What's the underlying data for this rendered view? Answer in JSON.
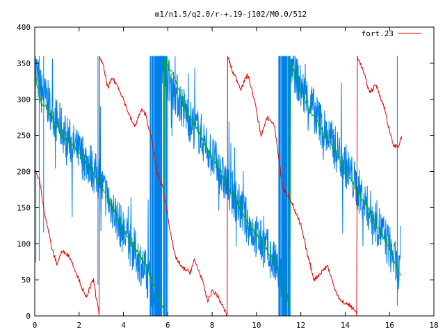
{
  "colors": {
    "red": "#e00000",
    "green": "#00b000",
    "blue": "#0080e8",
    "axis": "#000000"
  },
  "chart_data": {
    "type": "line",
    "title": "m1/n1.5/q2.0/r-+.19-j102/M0.0/512",
    "xlabel": "",
    "ylabel": "",
    "xlim": [
      0,
      18
    ],
    "ylim": [
      0,
      400
    ],
    "xticks": [
      0,
      2,
      4,
      6,
      8,
      10,
      12,
      14,
      16,
      18
    ],
    "yticks": [
      0,
      50,
      100,
      150,
      200,
      250,
      300,
      350,
      400
    ],
    "grid": false,
    "legend": {
      "position": "top-right",
      "entries": [
        "fort.23"
      ]
    },
    "series": [
      {
        "name": "fort.23",
        "color": "red",
        "wrap": 360,
        "points": [
          [
            0.0,
            200
          ],
          [
            0.2,
            190
          ],
          [
            0.3,
            170
          ],
          [
            0.35,
            158
          ],
          [
            0.6,
            120
          ],
          [
            0.8,
            90
          ],
          [
            1.0,
            72
          ],
          [
            1.2,
            88
          ],
          [
            1.4,
            88
          ],
          [
            1.6,
            80
          ],
          [
            2.0,
            50
          ],
          [
            2.3,
            25
          ],
          [
            2.5,
            40
          ],
          [
            2.65,
            50
          ],
          [
            2.75,
            30
          ],
          [
            2.9,
            2
          ],
          [
            2.92,
            360
          ],
          [
            3.1,
            345
          ],
          [
            3.3,
            315
          ],
          [
            3.5,
            330
          ],
          [
            3.8,
            315
          ],
          [
            4.0,
            300
          ],
          [
            4.3,
            275
          ],
          [
            4.5,
            262
          ],
          [
            4.8,
            285
          ],
          [
            5.0,
            280
          ],
          [
            5.3,
            240
          ],
          [
            5.5,
            200
          ],
          [
            5.8,
            175
          ],
          [
            6.1,
            120
          ],
          [
            6.3,
            85
          ],
          [
            6.6,
            68
          ],
          [
            7.0,
            60
          ],
          [
            7.2,
            77
          ],
          [
            7.5,
            55
          ],
          [
            7.8,
            20
          ],
          [
            8.0,
            35
          ],
          [
            8.2,
            30
          ],
          [
            8.4,
            18
          ],
          [
            8.6,
            5
          ],
          [
            8.68,
            0
          ],
          [
            8.7,
            360
          ],
          [
            8.9,
            340
          ],
          [
            9.3,
            315
          ],
          [
            9.6,
            335
          ],
          [
            9.9,
            300
          ],
          [
            10.2,
            250
          ],
          [
            10.5,
            275
          ],
          [
            10.8,
            265
          ],
          [
            11.0,
            220
          ],
          [
            11.2,
            175
          ],
          [
            11.5,
            165
          ],
          [
            11.8,
            140
          ],
          [
            12.0,
            125
          ],
          [
            12.3,
            85
          ],
          [
            12.6,
            50
          ],
          [
            12.9,
            60
          ],
          [
            13.2,
            70
          ],
          [
            13.5,
            40
          ],
          [
            13.8,
            20
          ],
          [
            14.2,
            15
          ],
          [
            14.5,
            5
          ],
          [
            14.52,
            0
          ],
          [
            14.55,
            360
          ],
          [
            14.8,
            340
          ],
          [
            15.1,
            310
          ],
          [
            15.4,
            320
          ],
          [
            15.8,
            285
          ],
          [
            16.0,
            255
          ],
          [
            16.2,
            235
          ],
          [
            16.4,
            235
          ],
          [
            16.55,
            248
          ]
        ]
      },
      {
        "color": "green",
        "wrap": 360,
        "points": [
          [
            0.0,
            335
          ],
          [
            0.3,
            295
          ],
          [
            0.5,
            290
          ],
          [
            0.8,
            275
          ],
          [
            1.2,
            252
          ],
          [
            1.6,
            240
          ],
          [
            2.0,
            225
          ],
          [
            2.5,
            205
          ],
          [
            3.0,
            180
          ],
          [
            3.5,
            150
          ],
          [
            4.0,
            118
          ],
          [
            4.5,
            95
          ],
          [
            5.0,
            70
          ],
          [
            5.3,
            50
          ],
          [
            5.5,
            30
          ],
          [
            5.8,
            10
          ],
          [
            5.85,
            355
          ],
          [
            6.3,
            330
          ],
          [
            6.8,
            285
          ],
          [
            7.3,
            260
          ],
          [
            7.8,
            230
          ],
          [
            8.3,
            205
          ],
          [
            8.8,
            175
          ],
          [
            9.3,
            148
          ],
          [
            9.8,
            120
          ],
          [
            10.3,
            100
          ],
          [
            10.8,
            75
          ],
          [
            11.1,
            55
          ],
          [
            11.3,
            30
          ],
          [
            11.5,
            10
          ],
          [
            11.55,
            355
          ],
          [
            12.0,
            310
          ],
          [
            12.5,
            280
          ],
          [
            13.0,
            255
          ],
          [
            13.5,
            230
          ],
          [
            14.0,
            205
          ],
          [
            14.5,
            175
          ],
          [
            15.0,
            150
          ],
          [
            15.5,
            120
          ],
          [
            16.0,
            95
          ],
          [
            16.3,
            70
          ],
          [
            16.5,
            55
          ]
        ]
      },
      {
        "color": "blue",
        "wrap": 360,
        "noise": 32,
        "points": [
          [
            0.0,
            345
          ],
          [
            0.3,
            310
          ],
          [
            0.6,
            295
          ],
          [
            1.0,
            270
          ],
          [
            1.5,
            245
          ],
          [
            2.0,
            225
          ],
          [
            2.5,
            210
          ],
          [
            3.0,
            180
          ],
          [
            3.5,
            150
          ],
          [
            4.0,
            115
          ],
          [
            4.5,
            90
          ],
          [
            5.0,
            60
          ],
          [
            5.3,
            40
          ],
          [
            5.6,
            15
          ],
          [
            5.65,
            355
          ],
          [
            6.0,
            330
          ],
          [
            6.5,
            300
          ],
          [
            7.0,
            270
          ],
          [
            7.5,
            250
          ],
          [
            8.0,
            220
          ],
          [
            8.5,
            190
          ],
          [
            9.0,
            165
          ],
          [
            9.5,
            135
          ],
          [
            10.0,
            110
          ],
          [
            10.5,
            90
          ],
          [
            11.0,
            60
          ],
          [
            11.3,
            35
          ],
          [
            11.5,
            15
          ],
          [
            11.55,
            355
          ],
          [
            12.0,
            315
          ],
          [
            12.5,
            290
          ],
          [
            13.0,
            260
          ],
          [
            13.5,
            235
          ],
          [
            14.0,
            210
          ],
          [
            14.5,
            180
          ],
          [
            15.0,
            150
          ],
          [
            15.5,
            125
          ],
          [
            16.0,
            95
          ],
          [
            16.4,
            60
          ],
          [
            16.5,
            55
          ]
        ]
      }
    ]
  }
}
